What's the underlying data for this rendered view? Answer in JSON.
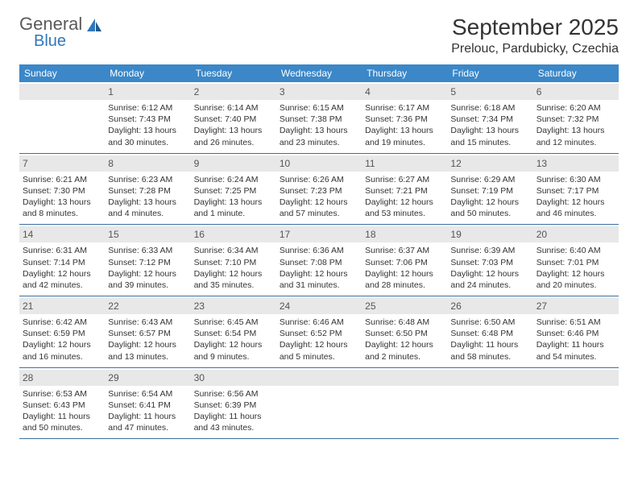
{
  "logo": {
    "line1": "General",
    "line2": "Blue"
  },
  "title": "September 2025",
  "location": "Prelouc, Pardubicky, Czechia",
  "colors": {
    "header_bg": "#3b87c8",
    "header_text": "#ffffff",
    "daynum_bg": "#e8e8e8",
    "week_border": "#3b6fa0",
    "logo_gray": "#5a5a5a",
    "logo_blue": "#2f77bb"
  },
  "typography": {
    "title_fontsize": 28,
    "location_fontsize": 16,
    "weekday_fontsize": 12,
    "daynum_fontsize": 12,
    "info_fontsize": 10.5
  },
  "weekdays": [
    "Sunday",
    "Monday",
    "Tuesday",
    "Wednesday",
    "Thursday",
    "Friday",
    "Saturday"
  ],
  "weeks": [
    [
      {
        "n": "",
        "sr": "",
        "ss": "",
        "dl": ""
      },
      {
        "n": "1",
        "sr": "Sunrise: 6:12 AM",
        "ss": "Sunset: 7:43 PM",
        "dl": "Daylight: 13 hours and 30 minutes."
      },
      {
        "n": "2",
        "sr": "Sunrise: 6:14 AM",
        "ss": "Sunset: 7:40 PM",
        "dl": "Daylight: 13 hours and 26 minutes."
      },
      {
        "n": "3",
        "sr": "Sunrise: 6:15 AM",
        "ss": "Sunset: 7:38 PM",
        "dl": "Daylight: 13 hours and 23 minutes."
      },
      {
        "n": "4",
        "sr": "Sunrise: 6:17 AM",
        "ss": "Sunset: 7:36 PM",
        "dl": "Daylight: 13 hours and 19 minutes."
      },
      {
        "n": "5",
        "sr": "Sunrise: 6:18 AM",
        "ss": "Sunset: 7:34 PM",
        "dl": "Daylight: 13 hours and 15 minutes."
      },
      {
        "n": "6",
        "sr": "Sunrise: 6:20 AM",
        "ss": "Sunset: 7:32 PM",
        "dl": "Daylight: 13 hours and 12 minutes."
      }
    ],
    [
      {
        "n": "7",
        "sr": "Sunrise: 6:21 AM",
        "ss": "Sunset: 7:30 PM",
        "dl": "Daylight: 13 hours and 8 minutes."
      },
      {
        "n": "8",
        "sr": "Sunrise: 6:23 AM",
        "ss": "Sunset: 7:28 PM",
        "dl": "Daylight: 13 hours and 4 minutes."
      },
      {
        "n": "9",
        "sr": "Sunrise: 6:24 AM",
        "ss": "Sunset: 7:25 PM",
        "dl": "Daylight: 13 hours and 1 minute."
      },
      {
        "n": "10",
        "sr": "Sunrise: 6:26 AM",
        "ss": "Sunset: 7:23 PM",
        "dl": "Daylight: 12 hours and 57 minutes."
      },
      {
        "n": "11",
        "sr": "Sunrise: 6:27 AM",
        "ss": "Sunset: 7:21 PM",
        "dl": "Daylight: 12 hours and 53 minutes."
      },
      {
        "n": "12",
        "sr": "Sunrise: 6:29 AM",
        "ss": "Sunset: 7:19 PM",
        "dl": "Daylight: 12 hours and 50 minutes."
      },
      {
        "n": "13",
        "sr": "Sunrise: 6:30 AM",
        "ss": "Sunset: 7:17 PM",
        "dl": "Daylight: 12 hours and 46 minutes."
      }
    ],
    [
      {
        "n": "14",
        "sr": "Sunrise: 6:31 AM",
        "ss": "Sunset: 7:14 PM",
        "dl": "Daylight: 12 hours and 42 minutes."
      },
      {
        "n": "15",
        "sr": "Sunrise: 6:33 AM",
        "ss": "Sunset: 7:12 PM",
        "dl": "Daylight: 12 hours and 39 minutes."
      },
      {
        "n": "16",
        "sr": "Sunrise: 6:34 AM",
        "ss": "Sunset: 7:10 PM",
        "dl": "Daylight: 12 hours and 35 minutes."
      },
      {
        "n": "17",
        "sr": "Sunrise: 6:36 AM",
        "ss": "Sunset: 7:08 PM",
        "dl": "Daylight: 12 hours and 31 minutes."
      },
      {
        "n": "18",
        "sr": "Sunrise: 6:37 AM",
        "ss": "Sunset: 7:06 PM",
        "dl": "Daylight: 12 hours and 28 minutes."
      },
      {
        "n": "19",
        "sr": "Sunrise: 6:39 AM",
        "ss": "Sunset: 7:03 PM",
        "dl": "Daylight: 12 hours and 24 minutes."
      },
      {
        "n": "20",
        "sr": "Sunrise: 6:40 AM",
        "ss": "Sunset: 7:01 PM",
        "dl": "Daylight: 12 hours and 20 minutes."
      }
    ],
    [
      {
        "n": "21",
        "sr": "Sunrise: 6:42 AM",
        "ss": "Sunset: 6:59 PM",
        "dl": "Daylight: 12 hours and 16 minutes."
      },
      {
        "n": "22",
        "sr": "Sunrise: 6:43 AM",
        "ss": "Sunset: 6:57 PM",
        "dl": "Daylight: 12 hours and 13 minutes."
      },
      {
        "n": "23",
        "sr": "Sunrise: 6:45 AM",
        "ss": "Sunset: 6:54 PM",
        "dl": "Daylight: 12 hours and 9 minutes."
      },
      {
        "n": "24",
        "sr": "Sunrise: 6:46 AM",
        "ss": "Sunset: 6:52 PM",
        "dl": "Daylight: 12 hours and 5 minutes."
      },
      {
        "n": "25",
        "sr": "Sunrise: 6:48 AM",
        "ss": "Sunset: 6:50 PM",
        "dl": "Daylight: 12 hours and 2 minutes."
      },
      {
        "n": "26",
        "sr": "Sunrise: 6:50 AM",
        "ss": "Sunset: 6:48 PM",
        "dl": "Daylight: 11 hours and 58 minutes."
      },
      {
        "n": "27",
        "sr": "Sunrise: 6:51 AM",
        "ss": "Sunset: 6:46 PM",
        "dl": "Daylight: 11 hours and 54 minutes."
      }
    ],
    [
      {
        "n": "28",
        "sr": "Sunrise: 6:53 AM",
        "ss": "Sunset: 6:43 PM",
        "dl": "Daylight: 11 hours and 50 minutes."
      },
      {
        "n": "29",
        "sr": "Sunrise: 6:54 AM",
        "ss": "Sunset: 6:41 PM",
        "dl": "Daylight: 11 hours and 47 minutes."
      },
      {
        "n": "30",
        "sr": "Sunrise: 6:56 AM",
        "ss": "Sunset: 6:39 PM",
        "dl": "Daylight: 11 hours and 43 minutes."
      },
      {
        "n": "",
        "sr": "",
        "ss": "",
        "dl": ""
      },
      {
        "n": "",
        "sr": "",
        "ss": "",
        "dl": ""
      },
      {
        "n": "",
        "sr": "",
        "ss": "",
        "dl": ""
      },
      {
        "n": "",
        "sr": "",
        "ss": "",
        "dl": ""
      }
    ]
  ]
}
